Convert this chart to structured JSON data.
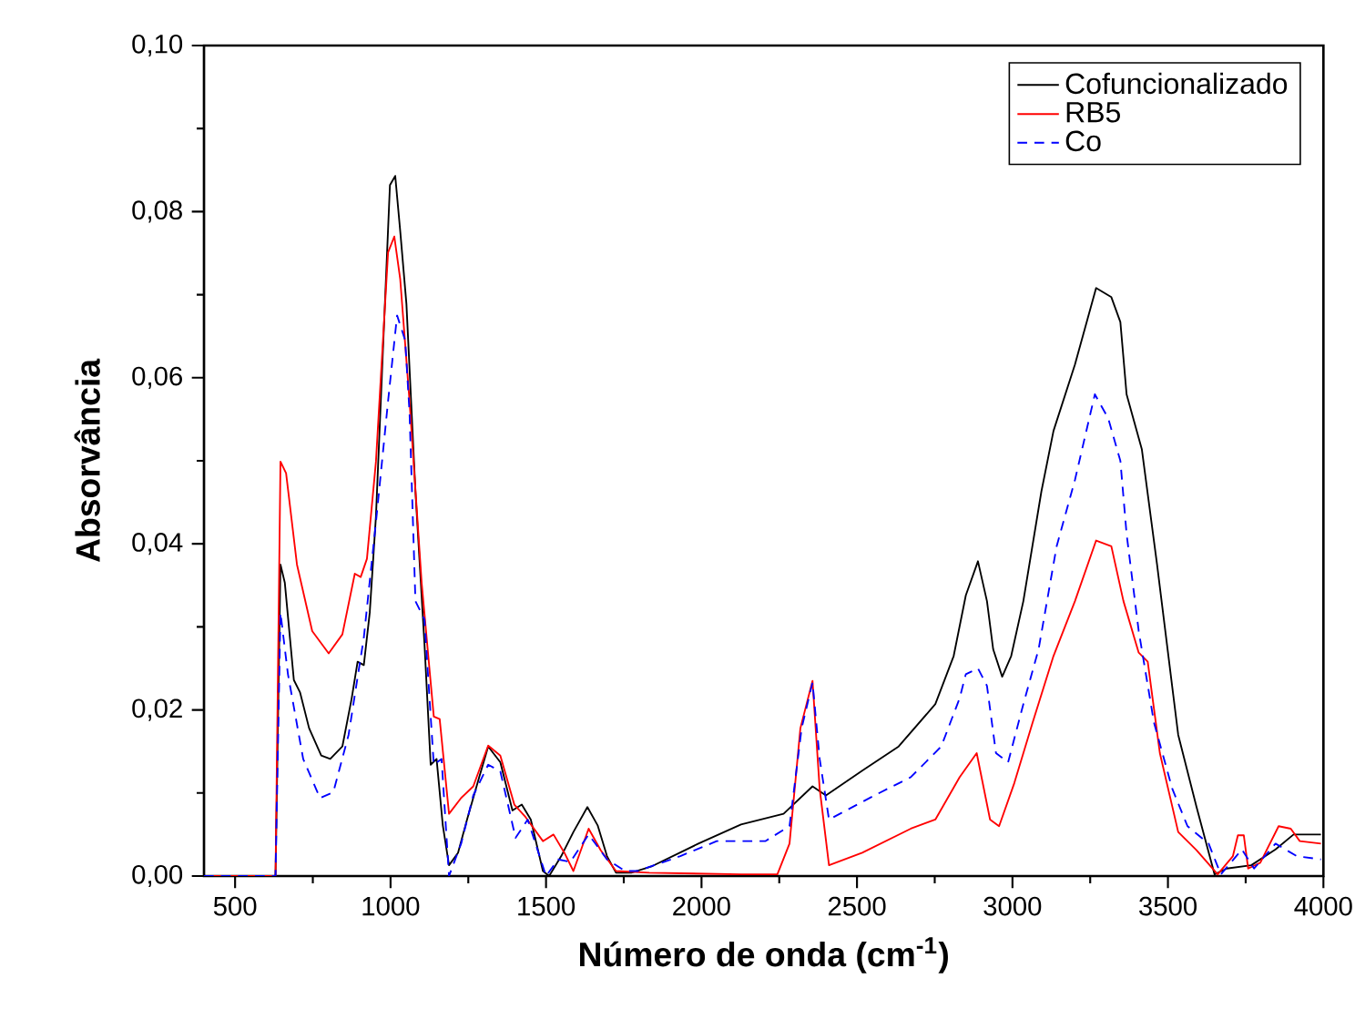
{
  "chart_data": {
    "type": "line",
    "xlabel": "Número de onda (cm$^{-1}$)",
    "ylabel": "Absorvância",
    "xlim": [
      400,
      4000
    ],
    "ylim": [
      0,
      0.1
    ],
    "xticks": [
      500,
      1000,
      1500,
      2000,
      2500,
      3000,
      3500,
      4000
    ],
    "yticks": [
      {
        "value": 0,
        "label": "0,00"
      },
      {
        "value": 0.02,
        "label": "0,02"
      },
      {
        "value": 0.04,
        "label": "0,04"
      },
      {
        "value": 0.06,
        "label": "0,06"
      },
      {
        "value": 0.08,
        "label": "0,08"
      },
      {
        "value": 0.1,
        "label": "0,10"
      }
    ],
    "grid": false,
    "legend": "top right",
    "marker": "none",
    "series": [
      {
        "name": "Cofuncionalizado",
        "color": "#000000",
        "line_style": "solid",
        "x": [
          400,
          630,
          646,
          660,
          689,
          709,
          738,
          777,
          806,
          845,
          875,
          894,
          914,
          933,
          953,
          972,
          998,
          1015,
          1031,
          1051,
          1080,
          1109,
          1129,
          1148,
          1168,
          1188,
          1217,
          1246,
          1285,
          1314,
          1353,
          1392,
          1422,
          1451,
          1490,
          1510,
          1549,
          1588,
          1633,
          1666,
          1696,
          1725,
          1774,
          1842,
          1990,
          2127,
          2264,
          2357,
          2400,
          2517,
          2634,
          2752,
          2811,
          2850,
          2889,
          2918,
          2938,
          2967,
          2996,
          3035,
          3093,
          3132,
          3201,
          3269,
          3318,
          3347,
          3367,
          3416,
          3465,
          3533,
          3592,
          3650,
          3689,
          3768,
          3846,
          3904,
          3992
        ],
        "values": [
          0,
          0,
          0.0375,
          0.0353,
          0.0236,
          0.0221,
          0.0178,
          0.0145,
          0.0141,
          0.0156,
          0.0214,
          0.0258,
          0.0254,
          0.0317,
          0.0433,
          0.0602,
          0.0832,
          0.0843,
          0.0777,
          0.0689,
          0.0463,
          0.028,
          0.0134,
          0.0141,
          0.0061,
          0.0013,
          0.0028,
          0.0068,
          0.0119,
          0.0156,
          0.0137,
          0.0079,
          0.0086,
          0.0068,
          0.0006,
          0,
          0.0024,
          0.0053,
          0.0083,
          0.0061,
          0.0024,
          0.0004,
          0.0004,
          0.0012,
          0.0039,
          0.0062,
          0.0075,
          0.0108,
          0.0097,
          0.0127,
          0.0156,
          0.0207,
          0.0265,
          0.0338,
          0.0379,
          0.0331,
          0.0273,
          0.024,
          0.0265,
          0.0331,
          0.0463,
          0.0536,
          0.0616,
          0.0708,
          0.0697,
          0.0667,
          0.058,
          0.0514,
          0.0375,
          0.017,
          0.0083,
          0.0002,
          0.0009,
          0.0013,
          0.0032,
          0.005,
          0.005
        ]
      },
      {
        "name": "RB5",
        "color": "#ff0000",
        "line_style": "solid",
        "x": [
          400,
          630,
          646,
          664,
          699,
          748,
          801,
          845,
          885,
          904,
          924,
          953,
          992,
          1012,
          1031,
          1061,
          1100,
          1139,
          1158,
          1188,
          1227,
          1266,
          1314,
          1353,
          1398,
          1432,
          1490,
          1524,
          1559,
          1588,
          1637,
          1676,
          1725,
          1832,
          2127,
          2244,
          2283,
          2318,
          2357,
          2380,
          2410,
          2517,
          2673,
          2752,
          2830,
          2885,
          2928,
          2957,
          3006,
          3065,
          3132,
          3201,
          3269,
          3318,
          3357,
          3406,
          3435,
          3474,
          3533,
          3592,
          3660,
          3709,
          3725,
          3744,
          3758,
          3797,
          3856,
          3895,
          3924,
          3992
        ],
        "values": [
          0,
          0,
          0.0499,
          0.0485,
          0.0375,
          0.0295,
          0.0268,
          0.0291,
          0.0364,
          0.036,
          0.0382,
          0.0499,
          0.0751,
          0.077,
          0.0719,
          0.0572,
          0.0353,
          0.0192,
          0.0189,
          0.0075,
          0.0094,
          0.0108,
          0.0157,
          0.0145,
          0.0086,
          0.0072,
          0.0042,
          0.005,
          0.0028,
          0.0006,
          0.0057,
          0.0031,
          0.0006,
          0.0004,
          0.0002,
          0.0002,
          0.0039,
          0.0178,
          0.0235,
          0.0105,
          0.0013,
          0.0028,
          0.0057,
          0.0068,
          0.0119,
          0.0148,
          0.0068,
          0.006,
          0.0112,
          0.0185,
          0.0265,
          0.0331,
          0.0404,
          0.0397,
          0.0331,
          0.0269,
          0.0258,
          0.0148,
          0.0053,
          0.0031,
          0.0002,
          0.0024,
          0.0049,
          0.0049,
          0.0009,
          0.0016,
          0.006,
          0.0057,
          0.0042,
          0.0039
        ]
      },
      {
        "name": "Co",
        "color": "#0000ff",
        "line_style": "dashed",
        "x": [
          400,
          630,
          646,
          670,
          719,
          773,
          816,
          865,
          914,
          953,
          992,
          1021,
          1047,
          1061,
          1080,
          1109,
          1139,
          1164,
          1188,
          1227,
          1266,
          1314,
          1353,
          1402,
          1441,
          1500,
          1539,
          1578,
          1637,
          1696,
          1754,
          1795,
          1932,
          2049,
          2205,
          2283,
          2322,
          2357,
          2380,
          2410,
          2556,
          2673,
          2771,
          2830,
          2850,
          2889,
          2918,
          2947,
          2986,
          3035,
          3084,
          3142,
          3201,
          3265,
          3308,
          3347,
          3367,
          3406,
          3455,
          3514,
          3563,
          3631,
          3670,
          3738,
          3777,
          3846,
          3914,
          3992
        ],
        "values": [
          0,
          0,
          0.0317,
          0.0243,
          0.0141,
          0.0094,
          0.0101,
          0.017,
          0.0287,
          0.0426,
          0.0572,
          0.0675,
          0.0645,
          0.0558,
          0.0331,
          0.0309,
          0.0134,
          0.0141,
          0,
          0.0039,
          0.0097,
          0.0134,
          0.0126,
          0.0046,
          0.0068,
          0,
          0.002,
          0.0017,
          0.005,
          0.002,
          0.0006,
          0.0006,
          0.0024,
          0.0042,
          0.0042,
          0.006,
          0.0178,
          0.0233,
          0.0141,
          0.0068,
          0.0097,
          0.0119,
          0.0156,
          0.0214,
          0.0243,
          0.025,
          0.0229,
          0.0148,
          0.0137,
          0.0207,
          0.0273,
          0.0397,
          0.0477,
          0.058,
          0.0551,
          0.05,
          0.0412,
          0.0295,
          0.0185,
          0.0105,
          0.006,
          0.0039,
          0.0002,
          0.0032,
          0.0009,
          0.0039,
          0.0024,
          0.002
        ]
      }
    ]
  }
}
